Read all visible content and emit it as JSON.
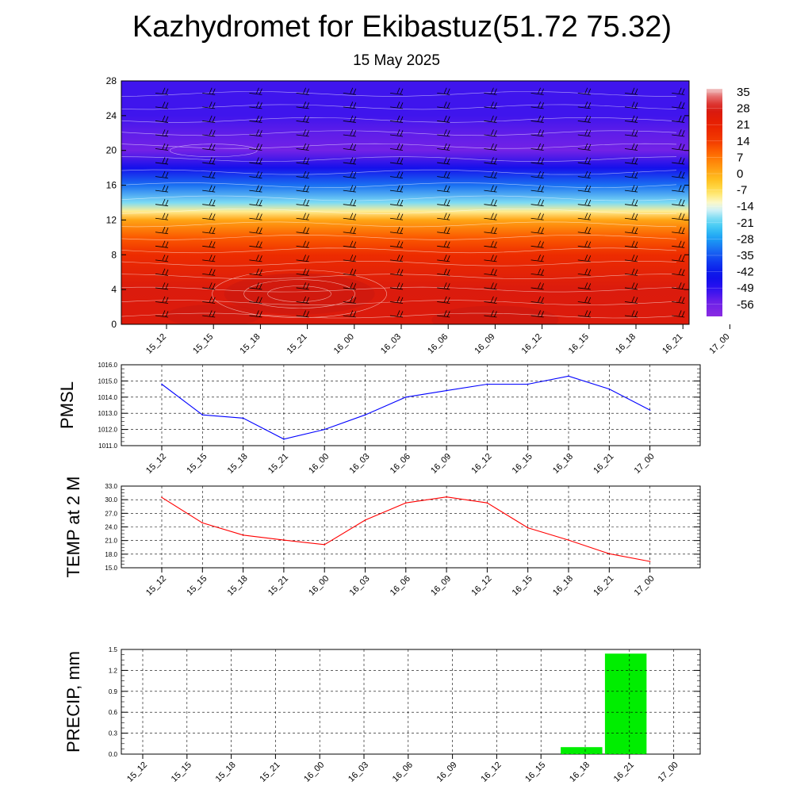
{
  "title": "Kazhydromet for Ekibastuz(51.72 75.32)",
  "subtitle": "15 May 2025",
  "time_labels": [
    "15_12",
    "15_15",
    "15_18",
    "15_21",
    "16_00",
    "16_03",
    "16_06",
    "16_09",
    "16_12",
    "16_15",
    "16_18",
    "16_21",
    "17_00"
  ],
  "colors": {
    "pmsl_line": "#0000ff",
    "temp_line": "#ff0000",
    "precip_bar": "#00ee00",
    "grid": "#000000"
  },
  "chart_data": [
    {
      "type": "heatmap",
      "name": "vertical-section",
      "x": [
        "15_12",
        "15_15",
        "15_18",
        "15_21",
        "16_00",
        "16_03",
        "16_06",
        "16_09",
        "16_12",
        "16_15",
        "16_18",
        "16_21",
        "17_00"
      ],
      "y_ticks": [
        0,
        4,
        8,
        12,
        16,
        20,
        24,
        28
      ],
      "ylim": [
        0,
        28
      ],
      "colorbar": {
        "labels": [
          "35",
          "28",
          "21",
          "14",
          "7",
          "0",
          "-7",
          "-14",
          "-21",
          "-28",
          "-35",
          "-42",
          "-49",
          "-56"
        ],
        "range": [
          -63,
          42
        ]
      },
      "temperature_profile": [
        {
          "level": 0,
          "value": 30
        },
        {
          "level": 4,
          "value": 31
        },
        {
          "level": 8,
          "value": 22
        },
        {
          "level": 10,
          "value": 14
        },
        {
          "level": 12,
          "value": 4
        },
        {
          "level": 13,
          "value": -8
        },
        {
          "level": 14,
          "value": -18
        },
        {
          "level": 16,
          "value": -32
        },
        {
          "level": 18,
          "value": -46
        },
        {
          "level": 20,
          "value": -58
        },
        {
          "level": 22,
          "value": -55
        },
        {
          "level": 24,
          "value": -52
        },
        {
          "level": 28,
          "value": -52
        }
      ],
      "wind_barbs": true
    },
    {
      "type": "line",
      "name": "pmsl",
      "ylabel": "PMSL",
      "ylim": [
        1011.0,
        1016.0
      ],
      "y_ticks": [
        "1011.0",
        "1012.0",
        "1013.0",
        "1014.0",
        "1015.0",
        "1016.0"
      ],
      "x": [
        "15_12",
        "15_15",
        "15_18",
        "15_21",
        "16_00",
        "16_03",
        "16_06",
        "16_09",
        "16_12",
        "16_15",
        "16_18",
        "16_21",
        "17_00"
      ],
      "values": [
        1014.8,
        1012.9,
        1012.7,
        1011.4,
        1012.0,
        1012.9,
        1014.0,
        1014.4,
        1014.8,
        1014.8,
        1015.3,
        1014.5,
        1013.2
      ],
      "grid": true
    },
    {
      "type": "line",
      "name": "temp-2m",
      "ylabel": "TEMP at 2 M",
      "ylim": [
        15.0,
        33.0
      ],
      "y_ticks": [
        "15.0",
        "18.0",
        "21.0",
        "24.0",
        "27.0",
        "30.0",
        "33.0"
      ],
      "x": [
        "15_12",
        "15_15",
        "15_18",
        "15_21",
        "16_00",
        "16_03",
        "16_06",
        "16_09",
        "16_12",
        "16_15",
        "16_18",
        "16_21",
        "17_00"
      ],
      "values": [
        30.5,
        24.9,
        22.2,
        21.1,
        20.1,
        25.5,
        29.3,
        30.6,
        29.3,
        23.8,
        21.1,
        18.1,
        16.4
      ],
      "grid": true
    },
    {
      "type": "bar",
      "name": "precip",
      "ylabel": "PRECIP, mm",
      "ylim": [
        0.0,
        1.5
      ],
      "y_ticks": [
        "0.0",
        "0.3",
        "0.6",
        "0.9",
        "1.2",
        "1.5"
      ],
      "categories": [
        "15_12",
        "15_15",
        "15_18",
        "15_21",
        "16_00",
        "16_03",
        "16_06",
        "16_09",
        "16_12",
        "16_15",
        "16_18",
        "16_21",
        "17_00"
      ],
      "values": [
        0,
        0,
        0,
        0,
        0,
        0,
        0,
        0,
        0,
        0,
        0.1,
        1.44,
        0
      ],
      "grid": true
    }
  ]
}
